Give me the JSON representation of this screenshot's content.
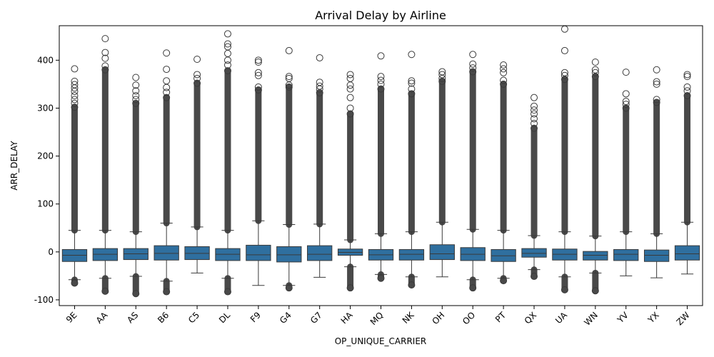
{
  "chart_data": {
    "type": "boxplot",
    "title": "Arrival Delay by Airline",
    "xlabel": "OP_UNIQUE_CARRIER",
    "ylabel": "ARR_DELAY",
    "ylim": [
      -112,
      472
    ],
    "yticks": [
      -100,
      0,
      100,
      200,
      300,
      400
    ],
    "grid": false,
    "box_color": "#2f6f9f",
    "line_color": "#3a3a3a",
    "categories": [
      "9E",
      "AA",
      "AS",
      "B6",
      "C5",
      "DL",
      "F9",
      "G4",
      "G7",
      "HA",
      "MQ",
      "NK",
      "OH",
      "OO",
      "PT",
      "QX",
      "UA",
      "WN",
      "YV",
      "YX",
      "ZW"
    ],
    "boxes": [
      {
        "carrier": "9E",
        "q1": -20,
        "median": -7,
        "q3": 5,
        "whisker_low": -58,
        "whisker_high": 45,
        "flier_max": 382,
        "flier_min": -65,
        "outliers": [
          356,
          349,
          342,
          335,
          326,
          318,
          310,
          302
        ]
      },
      {
        "carrier": "AA",
        "q1": -18,
        "median": -5,
        "q3": 7,
        "whisker_low": -55,
        "whisker_high": 45,
        "flier_max": 445,
        "flier_min": -82,
        "outliers": [
          416,
          404,
          388,
          380
        ]
      },
      {
        "carrier": "AS",
        "q1": -16,
        "median": -4,
        "q3": 7,
        "whisker_low": -51,
        "whisker_high": 42,
        "flier_max": 364,
        "flier_min": -87,
        "outliers": [
          348,
          336,
          326,
          318,
          310
        ]
      },
      {
        "carrier": "B6",
        "q1": -17,
        "median": -3,
        "q3": 13,
        "whisker_low": -61,
        "whisker_high": 60,
        "flier_max": 415,
        "flier_min": -83,
        "outliers": [
          381,
          357,
          343,
          333,
          322
        ]
      },
      {
        "carrier": "C5",
        "q1": -16,
        "median": -3,
        "q3": 11,
        "whisker_low": -44,
        "whisker_high": 52,
        "flier_max": 402,
        "flier_min": -44,
        "outliers": [
          370,
          362,
          352
        ]
      },
      {
        "carrier": "DL",
        "q1": -18,
        "median": -5,
        "q3": 7,
        "whisker_low": -55,
        "whisker_high": 45,
        "flier_max": 455,
        "flier_min": -83,
        "outliers": [
          434,
          428,
          414,
          400,
          390,
          378
        ]
      },
      {
        "carrier": "F9",
        "q1": -18,
        "median": -6,
        "q3": 14,
        "whisker_low": -70,
        "whisker_high": 65,
        "flier_max": 400,
        "flier_min": -70,
        "outliers": [
          396,
          374,
          368,
          344,
          338
        ]
      },
      {
        "carrier": "G4",
        "q1": -21,
        "median": -6,
        "q3": 11,
        "whisker_low": -70,
        "whisker_high": 57,
        "flier_max": 420,
        "flier_min": -75,
        "outliers": [
          366,
          362,
          348,
          344
        ]
      },
      {
        "carrier": "G7",
        "q1": -18,
        "median": -5,
        "q3": 13,
        "whisker_low": -53,
        "whisker_high": 58,
        "flier_max": 405,
        "flier_min": -53,
        "outliers": [
          354,
          346,
          340,
          332
        ]
      },
      {
        "carrier": "HA",
        "q1": -7,
        "median": -1,
        "q3": 6,
        "whisker_low": -31,
        "whisker_high": 25,
        "flier_max": 370,
        "flier_min": -75,
        "outliers": [
          362,
          348,
          340,
          322,
          300,
          288
        ]
      },
      {
        "carrier": "MQ",
        "q1": -17,
        "median": -6,
        "q3": 5,
        "whisker_low": -47,
        "whisker_high": 38,
        "flier_max": 409,
        "flier_min": -55,
        "outliers": [
          366,
          358,
          350,
          340
        ]
      },
      {
        "carrier": "NK",
        "q1": -17,
        "median": -5,
        "q3": 5,
        "whisker_low": -52,
        "whisker_high": 42,
        "flier_max": 412,
        "flier_min": -69,
        "outliers": [
          357,
          352,
          340,
          330
        ]
      },
      {
        "carrier": "OH",
        "q1": -16,
        "median": -4,
        "q3": 15,
        "whisker_low": -52,
        "whisker_high": 62,
        "flier_max": 376,
        "flier_min": -52,
        "outliers": [
          370,
          362,
          356
        ]
      },
      {
        "carrier": "OO",
        "q1": -18,
        "median": -5,
        "q3": 9,
        "whisker_low": -58,
        "whisker_high": 47,
        "flier_max": 412,
        "flier_min": -75,
        "outliers": [
          392,
          384,
          376
        ]
      },
      {
        "carrier": "PT",
        "q1": -20,
        "median": -8,
        "q3": 5,
        "whisker_low": -55,
        "whisker_high": 45,
        "flier_max": 390,
        "flier_min": -60,
        "outliers": [
          382,
          374,
          358,
          350
        ]
      },
      {
        "carrier": "QX",
        "q1": -11,
        "median": -3,
        "q3": 7,
        "whisker_low": -37,
        "whisker_high": 34,
        "flier_max": 322,
        "flier_min": -51,
        "outliers": [
          304,
          296,
          288,
          278,
          268,
          258
        ]
      },
      {
        "carrier": "UA",
        "q1": -17,
        "median": -5,
        "q3": 6,
        "whisker_low": -52,
        "whisker_high": 42,
        "flier_max": 465,
        "flier_min": -79,
        "outliers": [
          420,
          374,
          368,
          360
        ]
      },
      {
        "carrier": "WN",
        "q1": -17,
        "median": -7,
        "q3": 1,
        "whisker_low": -44,
        "whisker_high": 33,
        "flier_max": 396,
        "flier_min": -81,
        "outliers": [
          380,
          374,
          366
        ]
      },
      {
        "carrier": "YV",
        "q1": -18,
        "median": -5,
        "q3": 5,
        "whisker_low": -50,
        "whisker_high": 42,
        "flier_max": 375,
        "flier_min": -50,
        "outliers": [
          330,
          314,
          308,
          300
        ]
      },
      {
        "carrier": "YX",
        "q1": -20,
        "median": -7,
        "q3": 4,
        "whisker_low": -54,
        "whisker_high": 38,
        "flier_max": 380,
        "flier_min": -54,
        "outliers": [
          355,
          350,
          318,
          312
        ]
      },
      {
        "carrier": "ZW",
        "q1": -17,
        "median": -4,
        "q3": 13,
        "whisker_low": -46,
        "whisker_high": 62,
        "flier_max": 370,
        "flier_min": -46,
        "outliers": [
          366,
          344,
          336,
          326
        ]
      }
    ]
  }
}
